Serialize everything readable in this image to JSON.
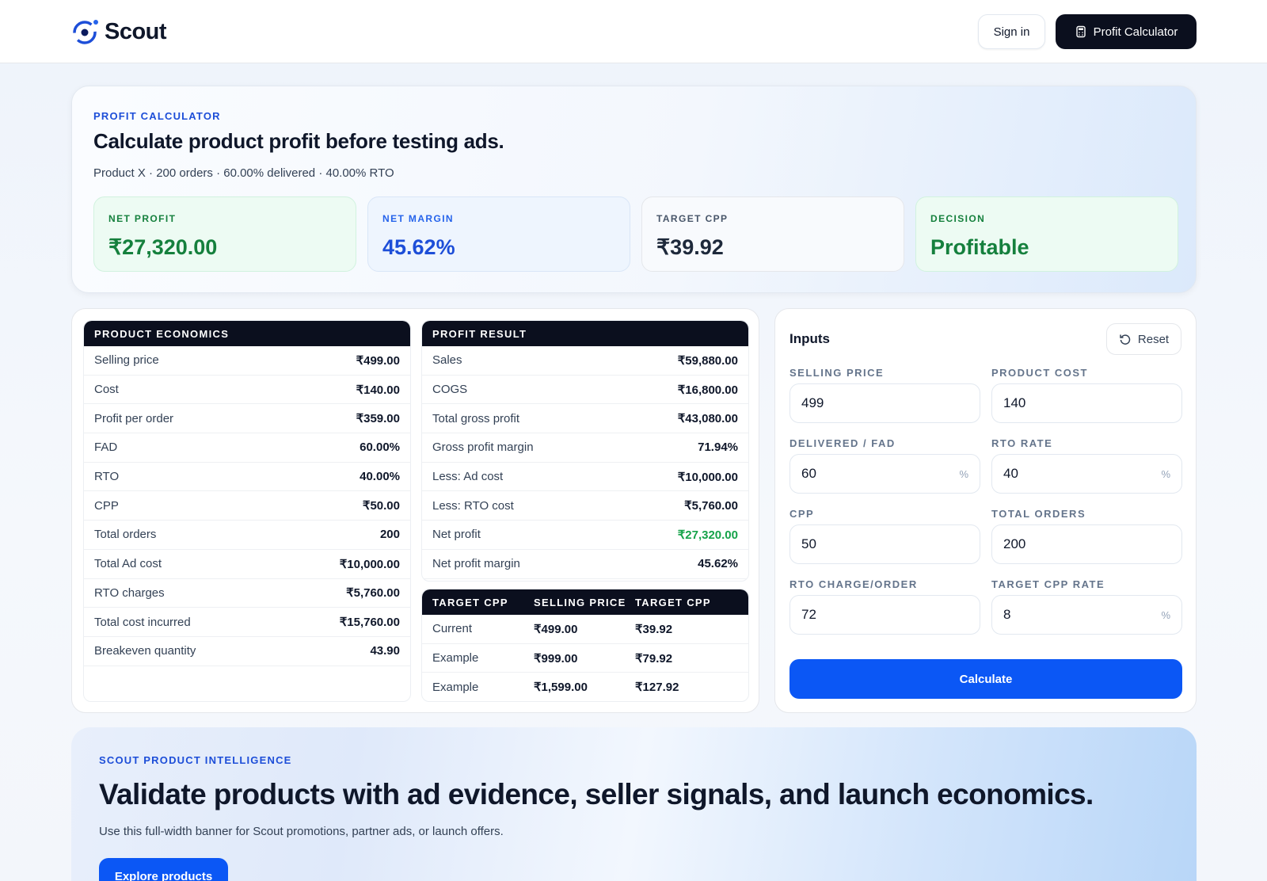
{
  "header": {
    "logo": "Scout",
    "sign_in": "Sign in",
    "cta": "Profit Calculator"
  },
  "hero": {
    "eyebrow": "PROFIT CALCULATOR",
    "title": "Calculate product profit before testing ads.",
    "subtitle": "Product X · 200 orders · 60.00% delivered · 40.00% RTO",
    "stats": [
      {
        "label": "NET PROFIT",
        "value": "₹27,320.00"
      },
      {
        "label": "NET MARGIN",
        "value": "45.62%"
      },
      {
        "label": "TARGET CPP",
        "value": "₹39.92"
      },
      {
        "label": "DECISION",
        "value": "Profitable"
      }
    ]
  },
  "economics": {
    "title": "PRODUCT ECONOMICS",
    "rows": [
      [
        "Selling price",
        "₹499.00"
      ],
      [
        "Cost",
        "₹140.00"
      ],
      [
        "Profit per order",
        "₹359.00"
      ],
      [
        "FAD",
        "60.00%"
      ],
      [
        "RTO",
        "40.00%"
      ],
      [
        "CPP",
        "₹50.00"
      ],
      [
        "Total orders",
        "200"
      ],
      [
        "Total Ad cost",
        "₹10,000.00"
      ],
      [
        "RTO charges",
        "₹5,760.00"
      ],
      [
        "Total cost incurred",
        "₹15,760.00"
      ],
      [
        "Breakeven quantity",
        "43.90"
      ]
    ]
  },
  "result": {
    "title": "PROFIT RESULT",
    "rows": [
      [
        "Sales",
        "₹59,880.00"
      ],
      [
        "COGS",
        "₹16,800.00"
      ],
      [
        "Total gross profit",
        "₹43,080.00"
      ],
      [
        "Gross profit margin",
        "71.94%"
      ],
      [
        "Less: Ad cost",
        "₹10,000.00"
      ],
      [
        "Less: RTO cost",
        "₹5,760.00"
      ],
      [
        "Net profit",
        "₹27,320.00"
      ],
      [
        "Net profit margin",
        "45.62%"
      ]
    ]
  },
  "target": {
    "headers": [
      "TARGET CPP",
      "SELLING PRICE",
      "TARGET CPP"
    ],
    "rows": [
      [
        "Current",
        "₹499.00",
        "₹39.92"
      ],
      [
        "Example",
        "₹999.00",
        "₹79.92"
      ],
      [
        "Example",
        "₹1,599.00",
        "₹127.92"
      ]
    ]
  },
  "inputs": {
    "title": "Inputs",
    "reset": "Reset",
    "fields": [
      {
        "label": "SELLING PRICE",
        "value": "499"
      },
      {
        "label": "PRODUCT COST",
        "value": "140"
      },
      {
        "label": "DELIVERED / FAD",
        "value": "60",
        "unit": "%"
      },
      {
        "label": "RTO RATE",
        "value": "40",
        "unit": "%"
      },
      {
        "label": "CPP",
        "value": "50"
      },
      {
        "label": "TOTAL ORDERS",
        "value": "200"
      },
      {
        "label": "RTO CHARGE/ORDER",
        "value": "72"
      },
      {
        "label": "TARGET CPP RATE",
        "value": "8",
        "unit": "%"
      }
    ],
    "submit": "Calculate"
  },
  "banner": {
    "eyebrow": "SCOUT PRODUCT INTELLIGENCE",
    "title": "Validate products with ad evidence, seller signals, and launch economics.",
    "text": "Use this full-width banner for Scout promotions, partner ads, or launch offers.",
    "button": "Explore products"
  }
}
